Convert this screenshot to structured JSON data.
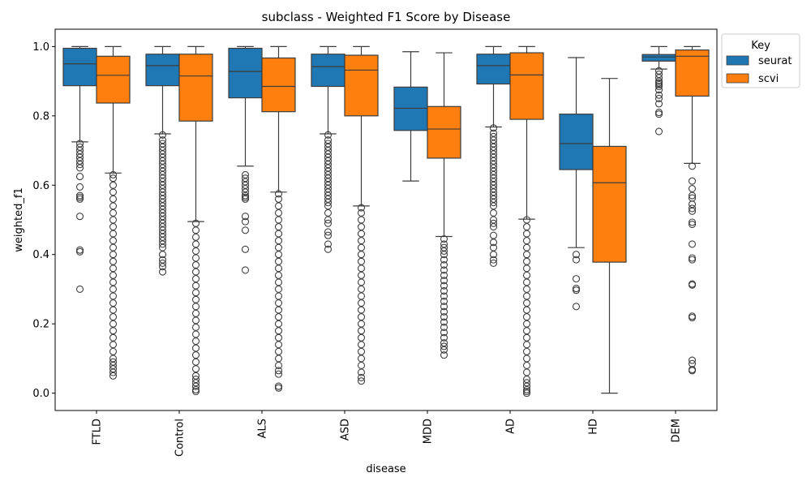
{
  "chart_data": {
    "type": "boxplot",
    "title": "subclass - Weighted F1 Score by Disease",
    "xlabel": "disease",
    "ylabel": "weighted_f1",
    "ylim": [
      -0.05,
      1.05
    ],
    "yticks": [
      "0.0",
      "0.2",
      "0.4",
      "0.6",
      "0.8",
      "1.0"
    ],
    "categories": [
      "FTLD",
      "Control",
      "ALS",
      "ASD",
      "MDD",
      "AD",
      "HD",
      "DEM"
    ],
    "legend": {
      "title": "Key",
      "placement": "upper-right-outside"
    },
    "series": [
      {
        "name": "seurat",
        "color": "#1f77b4",
        "boxes": [
          {
            "whislo": 0.725,
            "q1": 0.887,
            "med": 0.95,
            "q3": 0.995,
            "whishi": 1.0,
            "fliers": [
              0.72,
              0.71,
              0.7,
              0.69,
              0.68,
              0.67,
              0.66,
              0.65,
              0.625,
              0.595,
              0.57,
              0.565,
              0.56,
              0.51,
              0.413,
              0.408,
              0.3
            ]
          },
          {
            "whislo": 0.748,
            "q1": 0.887,
            "med": 0.945,
            "q3": 0.978,
            "whishi": 1.0,
            "fliers": [
              0.745,
              0.73,
              0.72,
              0.71,
              0.7,
              0.69,
              0.68,
              0.67,
              0.66,
              0.65,
              0.64,
              0.63,
              0.62,
              0.61,
              0.6,
              0.59,
              0.58,
              0.57,
              0.56,
              0.55,
              0.54,
              0.53,
              0.52,
              0.51,
              0.5,
              0.49,
              0.48,
              0.47,
              0.46,
              0.45,
              0.44,
              0.43,
              0.42,
              0.4,
              0.385,
              0.375,
              0.365,
              0.35
            ]
          },
          {
            "whislo": 0.655,
            "q1": 0.852,
            "med": 0.928,
            "q3": 0.995,
            "whishi": 1.0,
            "fliers": [
              0.63,
              0.62,
              0.61,
              0.6,
              0.59,
              0.58,
              0.57,
              0.565,
              0.56,
              0.51,
              0.495,
              0.47,
              0.415,
              0.355
            ]
          },
          {
            "whislo": 0.748,
            "q1": 0.885,
            "med": 0.942,
            "q3": 0.978,
            "whishi": 1.0,
            "fliers": [
              0.745,
              0.73,
              0.72,
              0.71,
              0.7,
              0.69,
              0.68,
              0.67,
              0.66,
              0.65,
              0.64,
              0.63,
              0.62,
              0.61,
              0.6,
              0.59,
              0.58,
              0.57,
              0.56,
              0.55,
              0.54,
              0.52,
              0.5,
              0.49,
              0.465,
              0.455,
              0.43,
              0.415
            ]
          },
          {
            "whislo": 0.612,
            "q1": 0.758,
            "med": 0.822,
            "q3": 0.883,
            "whishi": 0.985,
            "fliers": []
          },
          {
            "whislo": 0.768,
            "q1": 0.892,
            "med": 0.945,
            "q3": 0.978,
            "whishi": 1.0,
            "fliers": [
              0.765,
              0.75,
              0.74,
              0.73,
              0.72,
              0.71,
              0.7,
              0.69,
              0.68,
              0.67,
              0.66,
              0.65,
              0.64,
              0.63,
              0.62,
              0.61,
              0.6,
              0.59,
              0.58,
              0.57,
              0.56,
              0.55,
              0.54,
              0.52,
              0.5,
              0.49,
              0.48,
              0.455,
              0.435,
              0.42,
              0.4,
              0.385,
              0.375
            ]
          },
          {
            "whislo": 0.42,
            "q1": 0.645,
            "med": 0.72,
            "q3": 0.805,
            "whishi": 0.968,
            "fliers": [
              0.4,
              0.385,
              0.33,
              0.302,
              0.297,
              0.25
            ]
          },
          {
            "whislo": 0.935,
            "q1": 0.958,
            "med": 0.97,
            "q3": 0.977,
            "whishi": 1.0,
            "fliers": [
              0.93,
              0.92,
              0.91,
              0.9,
              0.895,
              0.89,
              0.885,
              0.875,
              0.86,
              0.85,
              0.835,
              0.81,
              0.805,
              0.755
            ]
          }
        ]
      },
      {
        "name": "scvi",
        "color": "#ff7f0e",
        "boxes": [
          {
            "whislo": 0.635,
            "q1": 0.837,
            "med": 0.917,
            "q3": 0.972,
            "whishi": 1.0,
            "fliers": [
              0.63,
              0.62,
              0.6,
              0.58,
              0.56,
              0.54,
              0.52,
              0.5,
              0.48,
              0.46,
              0.44,
              0.42,
              0.4,
              0.38,
              0.36,
              0.34,
              0.32,
              0.3,
              0.28,
              0.26,
              0.24,
              0.22,
              0.2,
              0.18,
              0.16,
              0.14,
              0.12,
              0.1,
              0.09,
              0.08,
              0.07,
              0.06,
              0.05
            ]
          },
          {
            "whislo": 0.495,
            "q1": 0.785,
            "med": 0.915,
            "q3": 0.978,
            "whishi": 1.0,
            "fliers": [
              0.49,
              0.47,
              0.45,
              0.43,
              0.41,
              0.39,
              0.37,
              0.35,
              0.33,
              0.31,
              0.29,
              0.27,
              0.25,
              0.23,
              0.21,
              0.19,
              0.17,
              0.15,
              0.13,
              0.11,
              0.09,
              0.07,
              0.05,
              0.04,
              0.03,
              0.02,
              0.01,
              0.005
            ]
          },
          {
            "whislo": 0.58,
            "q1": 0.812,
            "med": 0.885,
            "q3": 0.967,
            "whishi": 1.0,
            "fliers": [
              0.575,
              0.56,
              0.54,
              0.52,
              0.5,
              0.48,
              0.46,
              0.44,
              0.42,
              0.4,
              0.38,
              0.36,
              0.34,
              0.32,
              0.3,
              0.28,
              0.26,
              0.24,
              0.22,
              0.2,
              0.18,
              0.16,
              0.14,
              0.12,
              0.1,
              0.08,
              0.065,
              0.055,
              0.02,
              0.015
            ]
          },
          {
            "whislo": 0.54,
            "q1": 0.8,
            "med": 0.932,
            "q3": 0.975,
            "whishi": 1.0,
            "fliers": [
              0.535,
              0.52,
              0.5,
              0.48,
              0.46,
              0.44,
              0.42,
              0.4,
              0.38,
              0.36,
              0.34,
              0.32,
              0.3,
              0.28,
              0.26,
              0.24,
              0.22,
              0.2,
              0.18,
              0.16,
              0.14,
              0.12,
              0.1,
              0.08,
              0.06,
              0.045,
              0.035
            ]
          },
          {
            "whislo": 0.452,
            "q1": 0.678,
            "med": 0.762,
            "q3": 0.827,
            "whishi": 0.982,
            "fliers": [
              0.445,
              0.43,
              0.42,
              0.41,
              0.4,
              0.385,
              0.37,
              0.355,
              0.34,
              0.325,
              0.31,
              0.295,
              0.28,
              0.265,
              0.25,
              0.235,
              0.22,
              0.205,
              0.19,
              0.175,
              0.16,
              0.145,
              0.135,
              0.125,
              0.11
            ]
          },
          {
            "whislo": 0.502,
            "q1": 0.79,
            "med": 0.918,
            "q3": 0.982,
            "whishi": 1.0,
            "fliers": [
              0.5,
              0.48,
              0.46,
              0.44,
              0.42,
              0.4,
              0.38,
              0.36,
              0.34,
              0.32,
              0.3,
              0.28,
              0.26,
              0.24,
              0.22,
              0.2,
              0.18,
              0.16,
              0.14,
              0.12,
              0.1,
              0.08,
              0.06,
              0.04,
              0.03,
              0.02,
              0.01,
              0.005,
              0.0
            ]
          },
          {
            "whislo": 0.0,
            "q1": 0.378,
            "med": 0.607,
            "q3": 0.712,
            "whishi": 0.908,
            "fliers": []
          },
          {
            "whislo": 0.663,
            "q1": 0.857,
            "med": 0.972,
            "q3": 0.99,
            "whishi": 1.0,
            "fliers": [
              0.655,
              0.612,
              0.59,
              0.57,
              0.563,
              0.545,
              0.533,
              0.525,
              0.493,
              0.487,
              0.43,
              0.39,
              0.385,
              0.315,
              0.312,
              0.222,
              0.218,
              0.095,
              0.085,
              0.068,
              0.065
            ]
          }
        ]
      }
    ]
  }
}
